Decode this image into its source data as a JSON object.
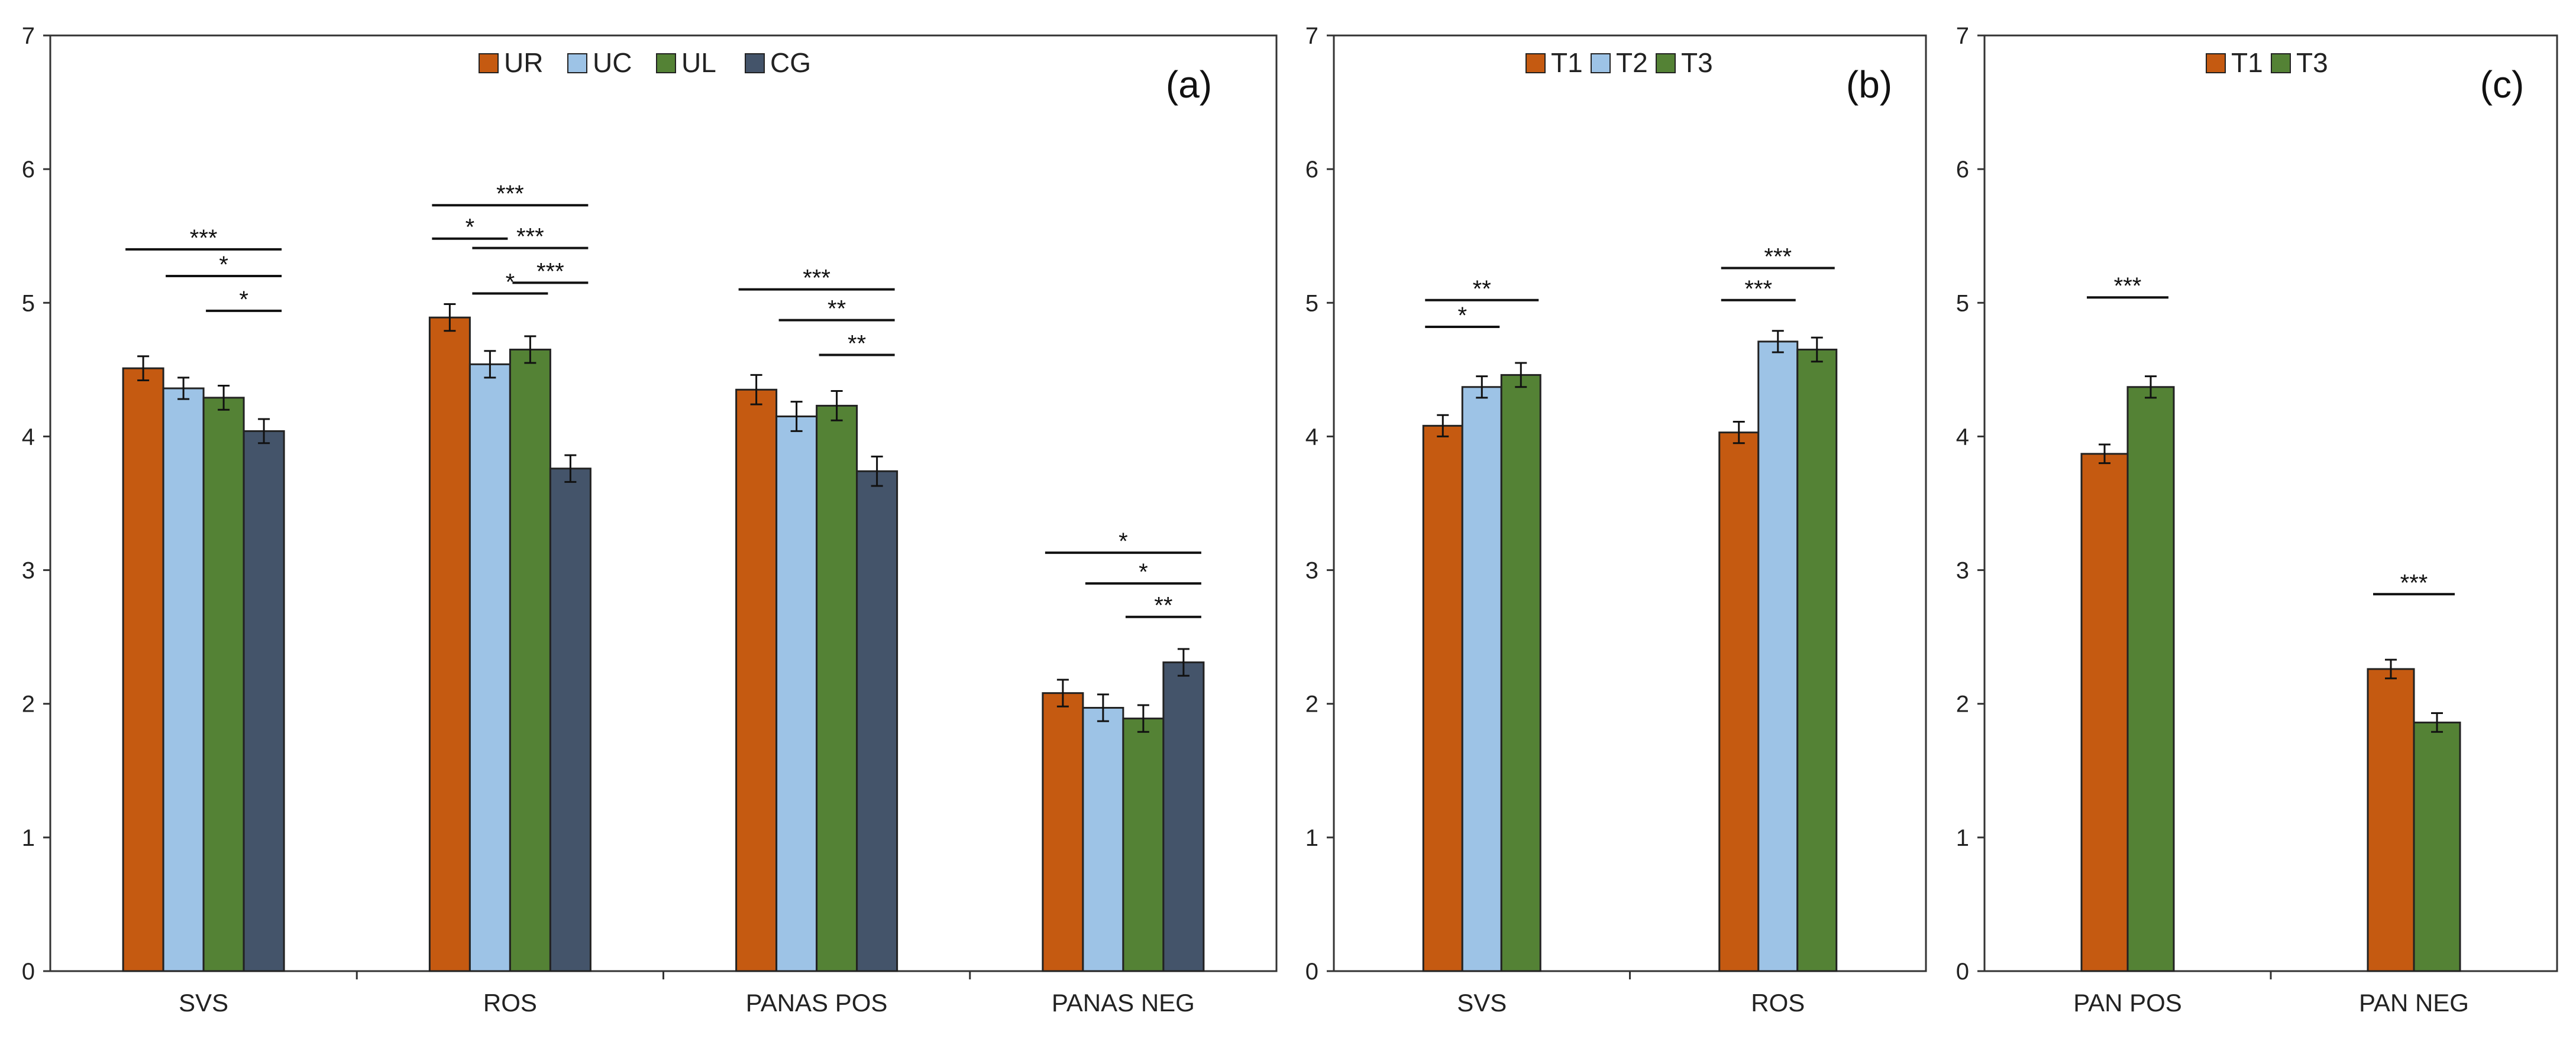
{
  "colors": {
    "UR": "#C55A11",
    "UC": "#9DC3E6",
    "UL": "#548235",
    "CG": "#44546A",
    "T1": "#C55A11",
    "T2": "#9DC3E6",
    "T3": "#548235"
  },
  "chart_data": [
    {
      "type": "bar",
      "panel_label": "(a)",
      "categories": [
        "SVS",
        "ROS",
        "PANAS POS",
        "PANAS NEG"
      ],
      "series": [
        {
          "name": "UR",
          "color_key": "UR",
          "values": [
            4.51,
            4.89,
            4.35,
            2.08
          ],
          "errors": [
            0.09,
            0.1,
            0.11,
            0.1
          ]
        },
        {
          "name": "UC",
          "color_key": "UC",
          "values": [
            4.36,
            4.54,
            4.15,
            1.97
          ],
          "errors": [
            0.08,
            0.1,
            0.11,
            0.1
          ]
        },
        {
          "name": "UL",
          "color_key": "UL",
          "values": [
            4.29,
            4.65,
            4.23,
            1.89
          ],
          "errors": [
            0.09,
            0.1,
            0.11,
            0.1
          ]
        },
        {
          "name": "CG",
          "color_key": "CG",
          "values": [
            4.04,
            3.76,
            3.74,
            2.31
          ],
          "errors": [
            0.09,
            0.1,
            0.11,
            0.1
          ]
        }
      ],
      "ylim": [
        0,
        7
      ],
      "yticks": [
        "0",
        "1",
        "2",
        "3",
        "4",
        "5",
        "6",
        "7"
      ],
      "significance": [
        {
          "category": 0,
          "from": 0,
          "to": 3,
          "y": 5.4,
          "label": "***"
        },
        {
          "category": 0,
          "from": 1,
          "to": 3,
          "y": 5.2,
          "label": "*"
        },
        {
          "category": 0,
          "from": 2,
          "to": 3,
          "y": 4.94,
          "label": "*"
        },
        {
          "category": 1,
          "from": 0,
          "to": 3,
          "y": 5.73,
          "label": "***"
        },
        {
          "category": 1,
          "from": 0,
          "to": 1,
          "y": 5.48,
          "label": "*"
        },
        {
          "category": 1,
          "from": 1,
          "to": 3,
          "y": 5.41,
          "label": "***"
        },
        {
          "category": 1,
          "from": 1,
          "to": 2,
          "y": 5.07,
          "label": "*"
        },
        {
          "category": 1,
          "from": 2,
          "to": 3,
          "y": 5.15,
          "label": "***"
        },
        {
          "category": 2,
          "from": 0,
          "to": 3,
          "y": 5.1,
          "label": "***"
        },
        {
          "category": 2,
          "from": 1,
          "to": 3,
          "y": 4.87,
          "label": "**"
        },
        {
          "category": 2,
          "from": 2,
          "to": 3,
          "y": 4.61,
          "label": "**"
        },
        {
          "category": 3,
          "from": 0,
          "to": 3,
          "y": 3.13,
          "label": "*"
        },
        {
          "category": 3,
          "from": 1,
          "to": 3,
          "y": 2.9,
          "label": "*"
        },
        {
          "category": 3,
          "from": 2,
          "to": 3,
          "y": 2.65,
          "label": "**"
        }
      ]
    },
    {
      "type": "bar",
      "panel_label": "(b)",
      "categories": [
        "SVS",
        "ROS"
      ],
      "series": [
        {
          "name": "T1",
          "color_key": "T1",
          "values": [
            4.08,
            4.03
          ],
          "errors": [
            0.08,
            0.08
          ]
        },
        {
          "name": "T2",
          "color_key": "T2",
          "values": [
            4.37,
            4.71
          ],
          "errors": [
            0.08,
            0.08
          ]
        },
        {
          "name": "T3",
          "color_key": "T3",
          "values": [
            4.46,
            4.65
          ],
          "errors": [
            0.09,
            0.09
          ]
        }
      ],
      "ylim": [
        0,
        7
      ],
      "yticks": [
        "0",
        "1",
        "2",
        "3",
        "4",
        "5",
        "6",
        "7"
      ],
      "significance": [
        {
          "category": 0,
          "from": 0,
          "to": 2,
          "y": 5.02,
          "label": "**"
        },
        {
          "category": 0,
          "from": 0,
          "to": 1,
          "y": 4.82,
          "label": "*"
        },
        {
          "category": 1,
          "from": 0,
          "to": 2,
          "y": 5.26,
          "label": "***"
        },
        {
          "category": 1,
          "from": 0,
          "to": 1,
          "y": 5.02,
          "label": "***"
        }
      ]
    },
    {
      "type": "bar",
      "panel_label": "(c)",
      "categories": [
        "PAN POS",
        "PAN NEG"
      ],
      "series": [
        {
          "name": "T1",
          "color_key": "T1",
          "values": [
            3.87,
            2.26
          ],
          "errors": [
            0.07,
            0.07
          ]
        },
        {
          "name": "T3",
          "color_key": "T3",
          "values": [
            4.37,
            1.86
          ],
          "errors": [
            0.08,
            0.07
          ]
        }
      ],
      "ylim": [
        0,
        7
      ],
      "yticks": [
        "0",
        "1",
        "2",
        "3",
        "4",
        "5",
        "6",
        "7"
      ],
      "significance": [
        {
          "category": 0,
          "from": 0,
          "to": 1,
          "y": 5.04,
          "label": "***"
        },
        {
          "category": 1,
          "from": 0,
          "to": 1,
          "y": 2.82,
          "label": "***"
        }
      ]
    }
  ]
}
